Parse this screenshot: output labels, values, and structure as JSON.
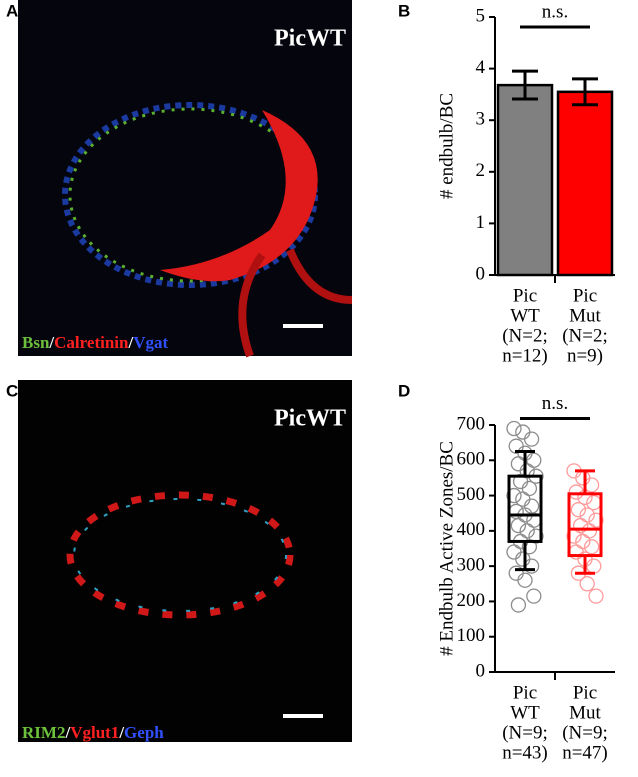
{
  "panel_labels": [
    "A",
    "B",
    "C",
    "D"
  ],
  "images": [
    {
      "title": "PicWT",
      "stain": [
        {
          "text": "Bsn",
          "color": "#6cc03c"
        },
        {
          "text": "/",
          "color": "#ffffff"
        },
        {
          "text": "Calretinin",
          "color": "#ff2020"
        },
        {
          "text": "/",
          "color": "#ffffff"
        },
        {
          "text": "Vgat",
          "color": "#3050ff"
        }
      ]
    },
    {
      "title": "PicWT",
      "stain": [
        {
          "text": "RIM2",
          "color": "#6cc03c"
        },
        {
          "text": "/",
          "color": "#ffffff"
        },
        {
          "text": "Vglut1",
          "color": "#ff2020"
        },
        {
          "text": "/",
          "color": "#ffffff"
        },
        {
          "text": "Geph",
          "color": "#3050ff"
        }
      ]
    }
  ],
  "chart_data": [
    {
      "type": "bar",
      "ylabel": "# endbulb/BC",
      "categories": [
        [
          "Pic",
          "WT",
          "(N=2;",
          "n=12)"
        ],
        [
          "Pic",
          "Mut",
          "(N=2;",
          "n=9)"
        ]
      ],
      "values": [
        3.68,
        3.55
      ],
      "errors": [
        0.27,
        0.25
      ],
      "colors": [
        "#808080",
        "#ff0000"
      ],
      "ylim": [
        0,
        5
      ],
      "yticks": [
        0,
        1,
        2,
        3,
        4,
        5
      ],
      "annotation": "n.s."
    },
    {
      "type": "box",
      "ylabel": "# Endbulb Active Zones/BC",
      "categories": [
        [
          "Pic",
          "WT",
          "(N=9;",
          "n=43)"
        ],
        [
          "Pic",
          "Mut",
          "(N=9;",
          "n=47)"
        ]
      ],
      "colors": [
        "#000000",
        "#ff0000"
      ],
      "point_colors": [
        "#8c8c8c",
        "#ff9a9a"
      ],
      "boxes": [
        {
          "whisker_low": 290,
          "q1": 370,
          "median": 445,
          "q3": 555,
          "whisker_high": 625,
          "points": [
            690,
            680,
            660,
            640,
            620,
            600,
            590,
            570,
            555,
            540,
            520,
            500,
            490,
            470,
            455,
            445,
            430,
            415,
            400,
            385,
            370,
            355,
            340,
            320,
            300,
            280,
            260,
            215,
            190
          ]
        },
        {
          "whisker_low": 280,
          "q1": 330,
          "median": 405,
          "q3": 505,
          "whisker_high": 570,
          "points": [
            570,
            550,
            530,
            510,
            495,
            480,
            460,
            445,
            430,
            415,
            400,
            385,
            370,
            355,
            340,
            320,
            300,
            280,
            250,
            215
          ]
        }
      ],
      "ylim": [
        0,
        700
      ],
      "yticks": [
        0,
        100,
        200,
        300,
        400,
        500,
        600,
        700
      ],
      "annotation": "n.s."
    }
  ]
}
